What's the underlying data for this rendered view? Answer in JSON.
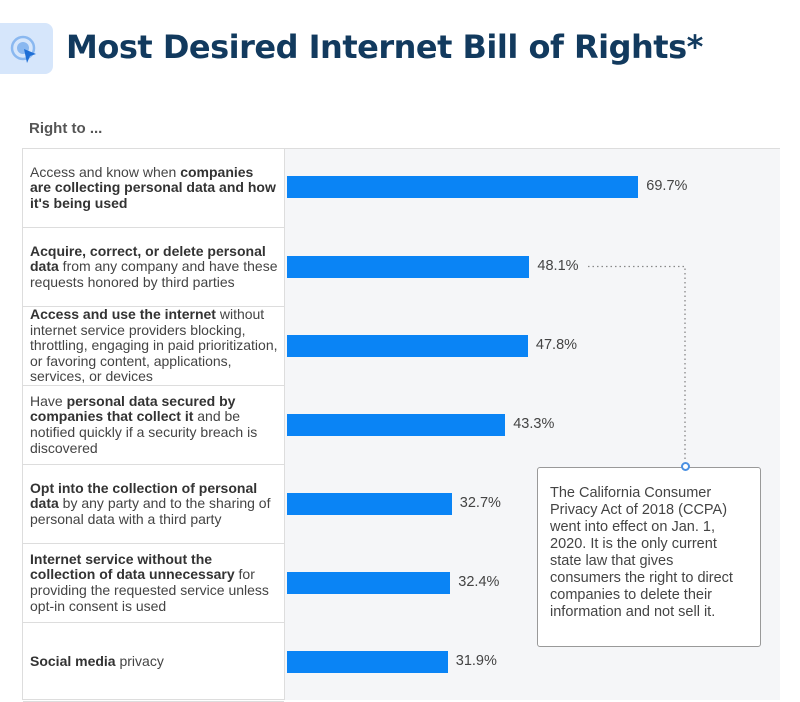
{
  "title": "Most Desired Internet Bill of Rights*",
  "logo_icon": "cursor-click-icon",
  "chart_data": {
    "type": "bar",
    "orientation": "horizontal",
    "column_header": "Right to ...",
    "bar_color": "#0a84f5",
    "categories": [
      [
        {
          "t": "Access and know when ",
          "b": false
        },
        {
          "t": "companies are collecting personal data and how it's being used",
          "b": true
        }
      ],
      [
        {
          "t": "Acquire, correct, or delete personal data",
          "b": true
        },
        {
          "t": " from any company and have these requests honored by third parties",
          "b": false
        }
      ],
      [
        {
          "t": "Access and use the internet",
          "b": true
        },
        {
          "t": " without internet service providers blocking, throttling, engaging in paid prioritization, or favoring content, applications, services, or devices",
          "b": false
        }
      ],
      [
        {
          "t": "Have ",
          "b": false
        },
        {
          "t": "personal data secured by companies that collect it",
          "b": true
        },
        {
          "t": " and be notified quickly if a security breach is discovered",
          "b": false
        }
      ],
      [
        {
          "t": "Opt into the collection of personal data",
          "b": true
        },
        {
          "t": " by any party and to the sharing of personal data with a third party",
          "b": false
        }
      ],
      [
        {
          "t": "Internet service without the collection of data unnecessary",
          "b": true
        },
        {
          "t": " for providing the requested service unless opt-in consent is used",
          "b": false
        }
      ],
      [
        {
          "t": "Social media",
          "b": true
        },
        {
          "t": " privacy",
          "b": false
        }
      ]
    ],
    "values": [
      69.7,
      48.1,
      47.8,
      43.3,
      32.7,
      32.4,
      31.9
    ],
    "value_labels": [
      "69.7%",
      "48.1%",
      "47.8%",
      "43.3%",
      "32.7%",
      "32.4%",
      "31.9%"
    ],
    "annotation": {
      "target_index": 1,
      "text": "The California Consumer Privacy Act of 2018 (CCPA) went into effect on Jan. 1, 2020. It is the only current state law that gives consumers the right to direct companies to delete their information and not sell it."
    }
  }
}
